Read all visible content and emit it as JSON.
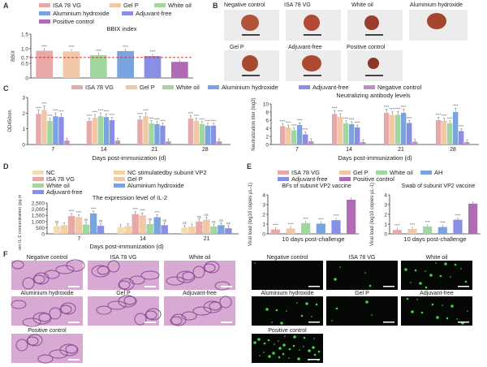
{
  "panel_letters": [
    "A",
    "B",
    "C",
    "D",
    "E",
    "F"
  ],
  "colors": {
    "ISA 78 VG": "#e8a8a8",
    "Gel P": "#f0c8a8",
    "White oil": "#9fd79f",
    "Aluminium hydroxide": "#7aa4e0",
    "Adjuvant-free": "#8a8fe6",
    "Negative control": "#c58ac8",
    "Positive control": "#b06ab6",
    "NC": "#f2dcb0",
    "NC stimulatedby subunit VP2": "#f5d0a0",
    "AH": "#7aa4e0"
  },
  "chart_data": [
    {
      "panel": "A",
      "type": "bar",
      "title": "BBIX index",
      "legend": [
        "ISA 78 VG",
        "Gel P",
        "White oil",
        "Aluminium hydroxide",
        "Adjuvant-free",
        "Positive control"
      ],
      "categories": [
        "ISA 78 VG",
        "Gel P",
        "White oil",
        "Aluminium hydroxide",
        "Adjuvant-free",
        "Positive control"
      ],
      "values": [
        0.93,
        0.91,
        0.78,
        0.92,
        0.75,
        0.55
      ],
      "ylabel": "BBIX",
      "ylim": [
        0,
        1.5
      ],
      "yticks": [
        "0",
        "0.5",
        "0.7",
        "1.0",
        "1.5"
      ],
      "threshold": 0.7,
      "sig": [
        "****",
        "****",
        "****",
        "****",
        "****",
        ""
      ]
    },
    {
      "panel": "C-left",
      "type": "bar",
      "legend": [
        "ISA 78 VG",
        "Gel P",
        "White oil",
        "Aluminium hydroxide",
        "Adjuvant-free",
        "Negative control"
      ],
      "categories": [
        "7",
        "14",
        "21",
        "28"
      ],
      "series": [
        {
          "name": "ISA 78 VG",
          "values": [
            1.95,
            1.5,
            1.6,
            1.65
          ]
        },
        {
          "name": "Gel P",
          "values": [
            2.2,
            1.7,
            1.8,
            1.5
          ]
        },
        {
          "name": "White oil",
          "values": [
            1.5,
            1.8,
            1.35,
            1.3
          ]
        },
        {
          "name": "Aluminium hydroxide",
          "values": [
            1.8,
            1.75,
            1.3,
            1.2
          ]
        },
        {
          "name": "Adjuvant-free",
          "values": [
            1.75,
            1.55,
            1.2,
            1.2
          ]
        },
        {
          "name": "Negative control",
          "values": [
            0.25,
            0.25,
            0.2,
            0.2
          ]
        }
      ],
      "ylabel": "OD450nm",
      "xlabel": "Days post-immunization (d)",
      "ylim": [
        0,
        3
      ],
      "yticks": [
        "0",
        "1",
        "2",
        "3"
      ]
    },
    {
      "panel": "C-right",
      "type": "bar",
      "title": "Neutralizing antibody levels",
      "categories": [
        "7",
        "14",
        "21",
        "28"
      ],
      "series": [
        {
          "name": "ISA 78 VG",
          "values": [
            4.5,
            7.5,
            7.8,
            6.0
          ]
        },
        {
          "name": "Gel P",
          "values": [
            4.2,
            6.8,
            7.2,
            5.8
          ]
        },
        {
          "name": "White oil",
          "values": [
            3.5,
            5.2,
            7.3,
            5.2
          ]
        },
        {
          "name": "Aluminium hydroxide",
          "values": [
            4.8,
            5.0,
            7.8,
            8.0
          ]
        },
        {
          "name": "Adjuvant-free",
          "values": [
            2.5,
            4.2,
            5.3,
            3.3
          ]
        },
        {
          "name": "Negative control",
          "values": [
            0.8,
            0.6,
            0.7,
            0.6
          ]
        }
      ],
      "ylabel": "Neutralization titer (log2)",
      "xlabel": "Days post-immunization (d)",
      "ylim": [
        0,
        10
      ],
      "yticks": [
        "0",
        "2",
        "4",
        "6",
        "8",
        "10"
      ]
    },
    {
      "panel": "D",
      "type": "bar",
      "title": "The expression level of IL-2",
      "legend": [
        "NC",
        "NC stimulatedby subunit VP2",
        "ISA 78 VG",
        "Gel P",
        "White oil",
        "Aluminium hydroxide",
        "Adjuvant-free"
      ],
      "categories": [
        "7",
        "14",
        "21"
      ],
      "series": [
        {
          "name": "NC",
          "values": [
            600,
            550,
            500
          ]
        },
        {
          "name": "NC stimulatedby subunit VP2",
          "values": [
            700,
            620,
            600
          ]
        },
        {
          "name": "ISA 78 VG",
          "values": [
            1450,
            1600,
            1000
          ]
        },
        {
          "name": "Gel P",
          "values": [
            1350,
            1500,
            1150
          ]
        },
        {
          "name": "White oil",
          "values": [
            750,
            800,
            600
          ]
        },
        {
          "name": "Aluminium hydroxide",
          "values": [
            1650,
            1350,
            700
          ]
        },
        {
          "name": "Adjuvant-free",
          "values": [
            650,
            700,
            450
          ]
        }
      ],
      "ylabel": "Chicken IL-2 concentration (pg mL-1)",
      "xlabel": "Days post-immunization (d)",
      "ylim": [
        0,
        2500
      ],
      "yticks": [
        "0",
        "500",
        "1,000",
        "1,500",
        "2,000",
        "2,500"
      ]
    },
    {
      "panel": "E-left",
      "type": "bar",
      "title": "BFs of subunit VP2 vaccine",
      "legend": [
        "ISA 78 VG",
        "Gel P",
        "White oil",
        "AH",
        "Adjuvant-free",
        "Positive control"
      ],
      "categories": [
        "ISA 78 VG",
        "Gel P",
        "White oil",
        "AH",
        "Adjuvant-free",
        "Positive control"
      ],
      "values": [
        0.45,
        0.55,
        1.1,
        1.05,
        1.4,
        3.5
      ],
      "ylabel": "Viral load (log10 copies μL-1)",
      "xlabel": "10 days post-challenge",
      "ylim": [
        0,
        4
      ],
      "yticks": [
        "0",
        "1",
        "2",
        "3",
        "4"
      ]
    },
    {
      "panel": "E-right",
      "type": "bar",
      "title": "Swab of subunit VP2 vaccine",
      "categories": [
        "ISA 78 VG",
        "Gel P",
        "White oil",
        "AH",
        "Adjuvant-free",
        "Positive control"
      ],
      "values": [
        0.4,
        0.5,
        0.75,
        0.7,
        1.45,
        3.1
      ],
      "ylabel": "Viral load (log10 copies μL-1)",
      "xlabel": "10 days post-challenge",
      "ylim": [
        0,
        4
      ],
      "yticks": [
        "0",
        "1",
        "2",
        "3",
        "4"
      ]
    }
  ],
  "panel_b": {
    "labels": [
      "Negative control",
      "ISA 78 VG",
      "White oil",
      "Aluminium hydroxide",
      "Gel P",
      "Adjuvant-free",
      "Positive control"
    ],
    "scale": "0cm"
  },
  "panel_f": {
    "he_labels": [
      "Negative control",
      "ISA 78 VG",
      "White oil",
      "Aluminium hydroxide",
      "Gel P",
      "Adjuvant-free",
      "Positive control"
    ],
    "if_labels": [
      "Negative control",
      "ISA 78 VG",
      "White oil",
      "Aluminium hydroxide",
      "Gel P",
      "Adjuvant-free",
      "Positive control"
    ]
  },
  "sig_text": {
    "ns": "ns",
    "four": "****",
    "three": "***",
    "two": "**",
    "one": "*"
  }
}
